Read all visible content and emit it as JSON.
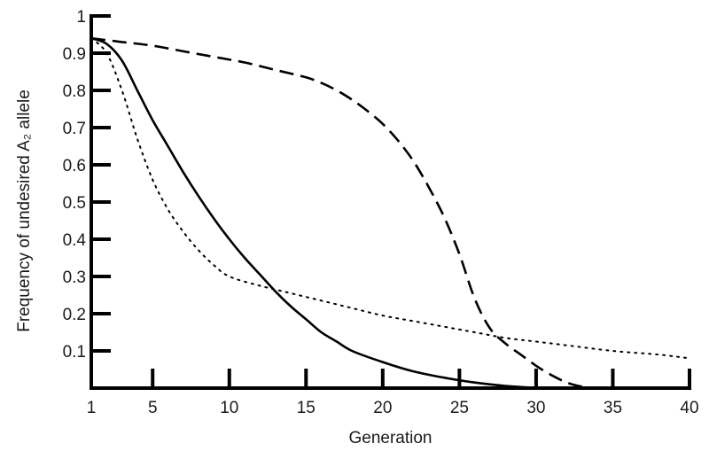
{
  "chart_data": {
    "type": "line",
    "title": "",
    "xlabel": "Generation",
    "ylabel": "Frequency of undesired A₂ allele",
    "xlim": [
      1,
      40
    ],
    "ylim": [
      0,
      1
    ],
    "x_ticks": [
      1,
      5,
      10,
      15,
      20,
      25,
      30,
      35,
      40
    ],
    "y_ticks": [
      0.1,
      0.2,
      0.3,
      0.4,
      0.5,
      0.6,
      0.7,
      0.8,
      0.9,
      1
    ],
    "x_tick_labels": [
      "1",
      "5",
      "10",
      "15",
      "20",
      "25",
      "30",
      "35",
      "40"
    ],
    "y_tick_labels": [
      "0.1",
      "0.2",
      "0.3",
      "0.4",
      "0.5",
      "0.6",
      "0.7",
      "0.8",
      "0.9",
      "1"
    ],
    "grid": false,
    "legend": "none",
    "series": [
      {
        "style": "solid",
        "color": "#000000",
        "x": [
          1,
          2,
          3,
          4,
          5,
          6,
          7,
          8,
          9,
          10,
          11,
          12,
          13,
          14,
          15,
          16,
          17,
          18,
          20,
          22,
          24,
          26,
          28,
          30,
          31
        ],
        "y": [
          0.94,
          0.925,
          0.88,
          0.8,
          0.72,
          0.65,
          0.58,
          0.515,
          0.455,
          0.4,
          0.35,
          0.305,
          0.26,
          0.22,
          0.185,
          0.15,
          0.125,
          0.1,
          0.07,
          0.045,
          0.028,
          0.015,
          0.006,
          0.001,
          0
        ]
      },
      {
        "style": "dotted",
        "color": "#000000",
        "x": [
          1,
          2,
          3,
          4,
          5,
          6,
          7,
          8,
          9,
          10,
          12,
          14,
          16,
          18,
          20,
          22,
          24,
          26,
          28,
          30,
          32,
          35,
          38,
          40
        ],
        "y": [
          0.94,
          0.9,
          0.8,
          0.67,
          0.56,
          0.48,
          0.42,
          0.37,
          0.33,
          0.3,
          0.275,
          0.255,
          0.235,
          0.215,
          0.195,
          0.18,
          0.165,
          0.15,
          0.135,
          0.125,
          0.115,
          0.1,
          0.09,
          0.08
        ]
      },
      {
        "style": "dashed",
        "color": "#000000",
        "x": [
          1,
          3,
          5,
          7,
          9,
          11,
          13,
          15,
          16,
          17,
          18,
          19,
          20,
          21,
          22,
          23,
          24,
          25,
          26,
          27,
          28,
          29,
          30,
          31,
          32,
          33,
          34
        ],
        "y": [
          0.94,
          0.93,
          0.92,
          0.905,
          0.89,
          0.875,
          0.855,
          0.835,
          0.82,
          0.8,
          0.775,
          0.745,
          0.71,
          0.665,
          0.61,
          0.54,
          0.46,
          0.36,
          0.24,
          0.16,
          0.12,
          0.09,
          0.06,
          0.035,
          0.015,
          0.004,
          0
        ]
      }
    ]
  }
}
